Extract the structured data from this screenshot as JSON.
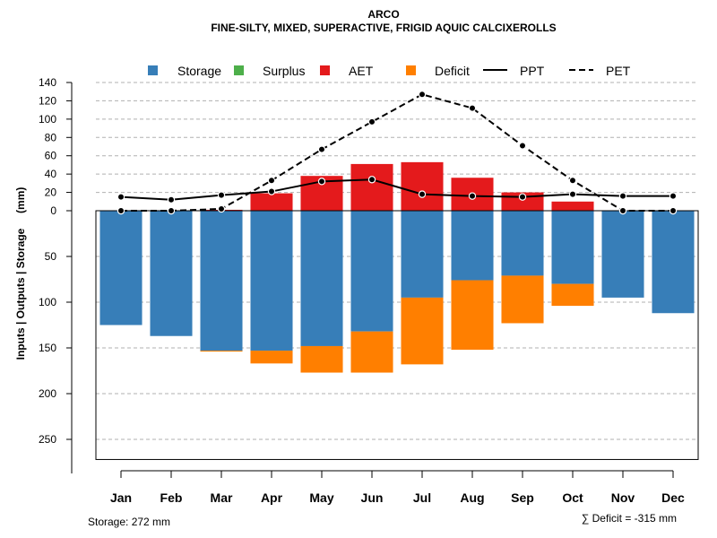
{
  "chart_data": {
    "type": "bar",
    "title": "ARCO",
    "subtitle": "FINE-SILTY, MIXED, SUPERACTIVE, FRIGID AQUIC CALCIXEROLLS",
    "ylabel": "Inputs | Outputs | Storage     (mm)",
    "upper_ticks": [
      "140",
      "120",
      "100",
      "80",
      "60",
      "40",
      "20",
      "0"
    ],
    "lower_ticks": [
      "50",
      "100",
      "150",
      "200",
      "250"
    ],
    "upper_ylim": [
      0,
      140
    ],
    "lower_ylim": [
      0,
      272
    ],
    "categories": [
      "Jan",
      "Feb",
      "Mar",
      "Apr",
      "May",
      "Jun",
      "Jul",
      "Aug",
      "Sep",
      "Oct",
      "Nov",
      "Dec"
    ],
    "legend": {
      "storage": "Storage",
      "surplus": "Surplus",
      "aet": "AET",
      "deficit": "Deficit",
      "ppt": "PPT",
      "pet": "PET"
    },
    "series": [
      {
        "name": "Storage",
        "color": "#377EB8",
        "values": [
          125,
          137,
          153,
          153,
          148,
          132,
          95,
          76,
          71,
          80,
          95,
          112
        ]
      },
      {
        "name": "Surplus",
        "color": "#4DAF4A",
        "values": [
          0,
          0,
          0,
          0,
          0,
          0,
          0,
          0,
          0,
          0,
          0,
          0
        ]
      },
      {
        "name": "AET",
        "color": "#E41A1C",
        "values": [
          0,
          0,
          1,
          19,
          38,
          51,
          53,
          36,
          20,
          10,
          0,
          0
        ]
      },
      {
        "name": "Deficit",
        "color": "#FF7F00",
        "values": [
          0,
          0,
          1,
          14,
          29,
          45,
          73,
          76,
          52,
          24,
          0,
          0
        ]
      },
      {
        "name": "PPT",
        "color": "#000000",
        "values": [
          15,
          12,
          17,
          21,
          32,
          34,
          18,
          16,
          15,
          18,
          16,
          16
        ]
      },
      {
        "name": "PET",
        "color": "#000000",
        "values": [
          0,
          0,
          2,
          33,
          67,
          97,
          127,
          112,
          71,
          33,
          0,
          0
        ]
      }
    ],
    "footnote_left": "Storage: 272 mm",
    "footnote_right": "∑ Deficit = -315 mm"
  }
}
